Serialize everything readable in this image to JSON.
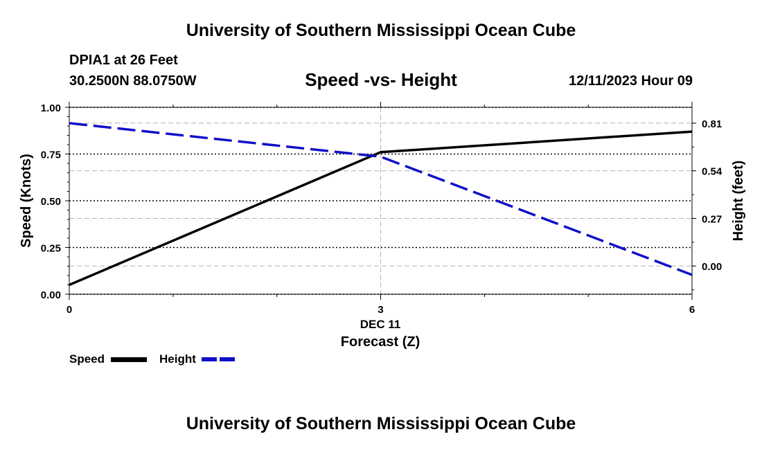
{
  "header": {
    "title": "University of Southern Mississippi Ocean Cube",
    "station": "DPIA1 at 26 Feet",
    "coords": "30.2500N  88.0750W",
    "subtitle": "Speed -vs- Height",
    "datetime": "12/11/2023 Hour 09"
  },
  "footer": {
    "title": "University of Southern Mississippi Ocean Cube"
  },
  "legend": {
    "speed_label": "Speed",
    "height_label": "Height"
  },
  "colors": {
    "speed": "#000000",
    "height": "#1010c8",
    "grid": "#b4b4b4"
  },
  "chart_data": {
    "type": "line",
    "title": "Speed -vs- Height",
    "xlabel": "Forecast (Z)",
    "xlabel_date": "DEC 11",
    "ylabel": "Speed (Knots)",
    "y2label": "Height (feet)",
    "x": [
      0,
      3,
      6
    ],
    "xlim": [
      0,
      6
    ],
    "xticks": [
      0,
      3,
      6
    ],
    "xtick_labels": [
      "0",
      "3",
      "6"
    ],
    "ylim": [
      0,
      1
    ],
    "yticks": [
      0,
      0.25,
      0.5,
      0.75,
      1
    ],
    "ytick_labels": [
      "0.00",
      "0.25",
      "0.50",
      "0.75",
      "1.00"
    ],
    "y2lim": [
      -0.16,
      0.9
    ],
    "y2ticks": [
      0,
      0.27,
      0.54,
      0.81
    ],
    "y2tick_labels": [
      "0.00",
      "0.27",
      "0.54",
      "0.81"
    ],
    "series": [
      {
        "name": "Speed",
        "axis": "left",
        "style": "solid",
        "values": [
          0.05,
          0.76,
          0.87
        ]
      },
      {
        "name": "Height",
        "axis": "right",
        "style": "dashed",
        "values": [
          0.81,
          0.62,
          -0.05
        ]
      }
    ]
  }
}
